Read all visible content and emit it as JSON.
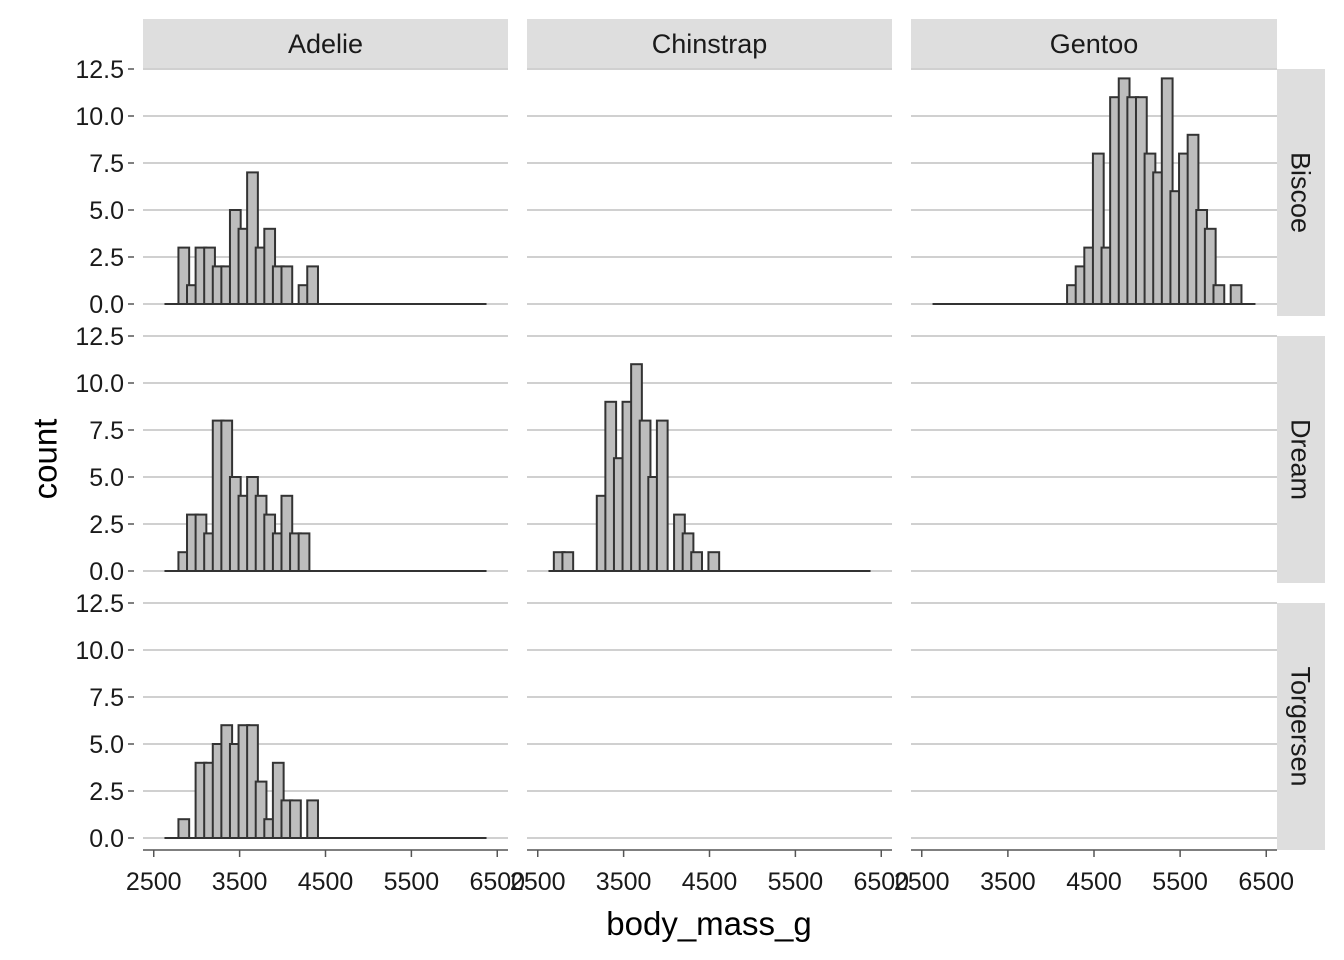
{
  "chart_data": {
    "type": "bar",
    "subtype": "faceted-histogram",
    "xlabel": "body_mass_g",
    "ylabel": "count",
    "xlim": [
      2625,
      6375
    ],
    "ylim": [
      0,
      12.5
    ],
    "bin_width": 125,
    "x_ticks": [
      2500,
      3500,
      4500,
      5500,
      6500
    ],
    "x_tick_labels": [
      "2500",
      "3500",
      "4500",
      "5500",
      "6500"
    ],
    "y_ticks": [
      0,
      2.5,
      5,
      7.5,
      10,
      12.5
    ],
    "y_tick_labels": [
      "0.0",
      "2.5",
      "5.0",
      "7.5",
      "10.0",
      "12.5"
    ],
    "columns": [
      "Adelie",
      "Chinstrap",
      "Gentoo"
    ],
    "rows": [
      "Biscoe",
      "Dream",
      "Torgersen"
    ],
    "panels": [
      {
        "column": "Adelie",
        "row": "Biscoe",
        "bins": [
          {
            "x": 2850,
            "count": 3
          },
          {
            "x": 2950,
            "count": 1
          },
          {
            "x": 3050,
            "count": 3
          },
          {
            "x": 3150,
            "count": 3
          },
          {
            "x": 3250,
            "count": 2
          },
          {
            "x": 3350,
            "count": 2
          },
          {
            "x": 3450,
            "count": 5
          },
          {
            "x": 3550,
            "count": 4
          },
          {
            "x": 3650,
            "count": 7
          },
          {
            "x": 3750,
            "count": 3
          },
          {
            "x": 3850,
            "count": 4
          },
          {
            "x": 3950,
            "count": 2
          },
          {
            "x": 4050,
            "count": 2
          },
          {
            "x": 4150,
            "count": 0
          },
          {
            "x": 4250,
            "count": 1
          },
          {
            "x": 4350,
            "count": 2
          }
        ]
      },
      {
        "column": "Chinstrap",
        "row": "Biscoe",
        "bins": []
      },
      {
        "column": "Gentoo",
        "row": "Biscoe",
        "bins": [
          {
            "x": 4250,
            "count": 1
          },
          {
            "x": 4350,
            "count": 2
          },
          {
            "x": 4450,
            "count": 3
          },
          {
            "x": 4550,
            "count": 8
          },
          {
            "x": 4650,
            "count": 3
          },
          {
            "x": 4750,
            "count": 11
          },
          {
            "x": 4850,
            "count": 12
          },
          {
            "x": 4950,
            "count": 11
          },
          {
            "x": 5050,
            "count": 11
          },
          {
            "x": 5150,
            "count": 8
          },
          {
            "x": 5250,
            "count": 7
          },
          {
            "x": 5350,
            "count": 12
          },
          {
            "x": 5450,
            "count": 6
          },
          {
            "x": 5550,
            "count": 8
          },
          {
            "x": 5650,
            "count": 9
          },
          {
            "x": 5750,
            "count": 5
          },
          {
            "x": 5850,
            "count": 4
          },
          {
            "x": 5950,
            "count": 1
          },
          {
            "x": 6050,
            "count": 0
          },
          {
            "x": 6150,
            "count": 1
          }
        ]
      },
      {
        "column": "Adelie",
        "row": "Dream",
        "bins": [
          {
            "x": 2850,
            "count": 1
          },
          {
            "x": 2950,
            "count": 3
          },
          {
            "x": 3050,
            "count": 3
          },
          {
            "x": 3150,
            "count": 2
          },
          {
            "x": 3250,
            "count": 8
          },
          {
            "x": 3350,
            "count": 8
          },
          {
            "x": 3450,
            "count": 5
          },
          {
            "x": 3550,
            "count": 4
          },
          {
            "x": 3650,
            "count": 5
          },
          {
            "x": 3750,
            "count": 4
          },
          {
            "x": 3850,
            "count": 3
          },
          {
            "x": 3950,
            "count": 2
          },
          {
            "x": 4050,
            "count": 4
          },
          {
            "x": 4150,
            "count": 2
          },
          {
            "x": 4250,
            "count": 2
          }
        ]
      },
      {
        "column": "Chinstrap",
        "row": "Dream",
        "bins": [
          {
            "x": 2750,
            "count": 1
          },
          {
            "x": 2850,
            "count": 1
          },
          {
            "x": 2950,
            "count": 0
          },
          {
            "x": 3050,
            "count": 0
          },
          {
            "x": 3150,
            "count": 0
          },
          {
            "x": 3250,
            "count": 4
          },
          {
            "x": 3350,
            "count": 9
          },
          {
            "x": 3450,
            "count": 6
          },
          {
            "x": 3550,
            "count": 9
          },
          {
            "x": 3650,
            "count": 11
          },
          {
            "x": 3750,
            "count": 8
          },
          {
            "x": 3850,
            "count": 5
          },
          {
            "x": 3950,
            "count": 8
          },
          {
            "x": 4050,
            "count": 0
          },
          {
            "x": 4150,
            "count": 3
          },
          {
            "x": 4250,
            "count": 2
          },
          {
            "x": 4350,
            "count": 1
          },
          {
            "x": 4450,
            "count": 0
          },
          {
            "x": 4550,
            "count": 1
          }
        ]
      },
      {
        "column": "Gentoo",
        "row": "Dream",
        "bins": []
      },
      {
        "column": "Adelie",
        "row": "Torgersen",
        "bins": [
          {
            "x": 2850,
            "count": 1
          },
          {
            "x": 2950,
            "count": 0
          },
          {
            "x": 3050,
            "count": 4
          },
          {
            "x": 3150,
            "count": 4
          },
          {
            "x": 3250,
            "count": 5
          },
          {
            "x": 3350,
            "count": 6
          },
          {
            "x": 3450,
            "count": 5
          },
          {
            "x": 3550,
            "count": 6
          },
          {
            "x": 3650,
            "count": 6
          },
          {
            "x": 3750,
            "count": 3
          },
          {
            "x": 3850,
            "count": 1
          },
          {
            "x": 3950,
            "count": 4
          },
          {
            "x": 4050,
            "count": 2
          },
          {
            "x": 4150,
            "count": 2
          },
          {
            "x": 4250,
            "count": 0
          },
          {
            "x": 4350,
            "count": 2
          }
        ]
      },
      {
        "column": "Chinstrap",
        "row": "Torgersen",
        "bins": []
      },
      {
        "column": "Gentoo",
        "row": "Torgersen",
        "bins": []
      }
    ],
    "grid": "horizontal",
    "colors": {
      "bar_fill": "#bdbdbd",
      "bar_stroke": "#333333",
      "strip": "#dedede",
      "grid": "#d0d0d0"
    }
  }
}
